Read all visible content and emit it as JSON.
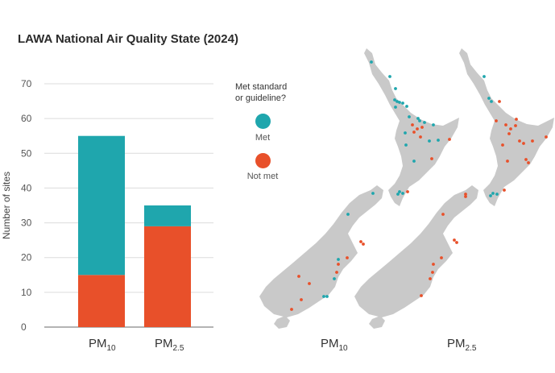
{
  "title": "LAWA National Air Quality State (2024)",
  "colors": {
    "met": "#1fa6ad",
    "not_met": "#e8502a",
    "land": "#c9c9c9"
  },
  "legend": {
    "title_line1": "Met standard",
    "title_line2": "or guideline?",
    "met_label": "Met",
    "not_met_label": "Not met"
  },
  "chart_data": {
    "type": "bar",
    "stacked": true,
    "categories": [
      "PM10",
      "PM2.5"
    ],
    "category_main": [
      "PM",
      "PM"
    ],
    "category_sub": [
      "10",
      "2.5"
    ],
    "series": [
      {
        "name": "Not met",
        "values": [
          15,
          29
        ]
      },
      {
        "name": "Met",
        "values": [
          40,
          6
        ]
      }
    ],
    "ylabel": "Number of sites",
    "ylim": [
      0,
      70
    ],
    "yticks": [
      0,
      10,
      20,
      30,
      40,
      50,
      60,
      70
    ],
    "grid": true
  },
  "maps": [
    {
      "label_main": "PM",
      "label_sub": "10"
    },
    {
      "label_main": "PM",
      "label_sub": "2.5"
    }
  ]
}
